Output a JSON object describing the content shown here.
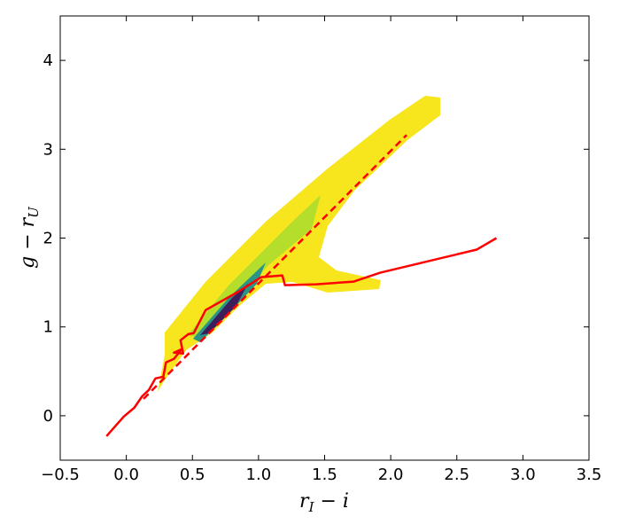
{
  "chart_data": {
    "type": "line",
    "xlabel": [
      "r",
      "I",
      " − i"
    ],
    "ylabel": [
      "g − r",
      "U"
    ],
    "xlim": [
      -0.5,
      3.5
    ],
    "ylim": [
      -0.5,
      4.5
    ],
    "xticks": [
      {
        "value": -0.5,
        "label": "−0.5"
      },
      {
        "value": 0,
        "label": "0.0"
      },
      {
        "value": 0.5,
        "label": "0.5"
      },
      {
        "value": 1,
        "label": "1.0"
      },
      {
        "value": 1.5,
        "label": "1.5"
      },
      {
        "value": 2,
        "label": "2.0"
      },
      {
        "value": 2.5,
        "label": "2.5"
      },
      {
        "value": 3,
        "label": "3.0"
      },
      {
        "value": 3.5,
        "label": "3.5"
      }
    ],
    "yticks": [
      0,
      1,
      2,
      3,
      4
    ],
    "series": [
      {
        "color": "#ff0000",
        "dash": false,
        "x": [
          -0.15,
          -0.02,
          0.06,
          0.12,
          0.17,
          0.22,
          0.28,
          0.3,
          0.36,
          0.42,
          0.36,
          0.43,
          0.41,
          0.47,
          0.51,
          0.6,
          0.84,
          0.99,
          1.02,
          1.18,
          1.2,
          1.44,
          1.72,
          1.92,
          2.65,
          2.8
        ],
        "values": [
          -0.23,
          -0.01,
          0.09,
          0.22,
          0.29,
          0.42,
          0.44,
          0.6,
          0.64,
          0.75,
          0.71,
          0.7,
          0.85,
          0.92,
          0.93,
          1.19,
          1.39,
          1.53,
          1.56,
          1.58,
          1.47,
          1.48,
          1.51,
          1.61,
          1.87,
          2.0
        ]
      },
      {
        "color": "#ff0000",
        "dash": true,
        "x": [
          0.13,
          2.12
        ],
        "values": [
          0.19,
          3.16
        ]
      }
    ]
  }
}
